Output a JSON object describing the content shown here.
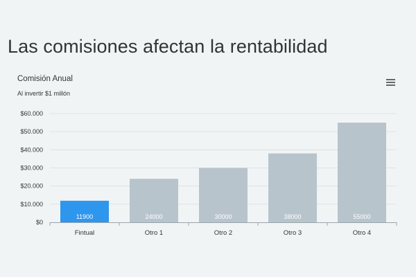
{
  "page": {
    "title": "Las comisiones afectan la rentabilidad"
  },
  "menu": {
    "icon": "hamburger-menu-icon"
  },
  "chart_data": {
    "type": "bar",
    "title": "Comisión Anual",
    "subtitle": "Al invertir $1 millón",
    "categories": [
      "Fintual",
      "Otro 1",
      "Otro 2",
      "Otro 3",
      "Otro 4"
    ],
    "values": [
      11900,
      24000,
      30000,
      38000,
      55000
    ],
    "colors": [
      "#2f96ee",
      "#b8c4cc",
      "#b8c4cc",
      "#b8c4cc",
      "#b8c4cc"
    ],
    "ylim": [
      0,
      60000
    ],
    "yticks": [
      {
        "value": 0,
        "label": "$0"
      },
      {
        "value": 10000,
        "label": "$10.000"
      },
      {
        "value": 20000,
        "label": "$20.000"
      },
      {
        "value": 30000,
        "label": "$30.000"
      },
      {
        "value": 40000,
        "label": "$40.000"
      },
      {
        "value": 50000,
        "label": "$50.000"
      },
      {
        "value": 60000,
        "label": "$60.000"
      }
    ],
    "data_labels": [
      "11900",
      "24000",
      "30000",
      "38000",
      "55000"
    ],
    "grid": true,
    "legend": "none"
  }
}
